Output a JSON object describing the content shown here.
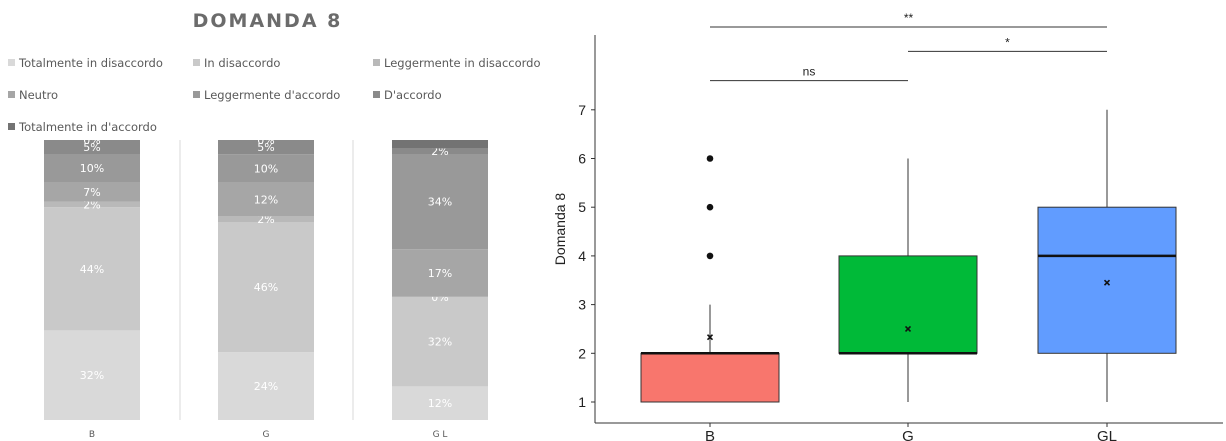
{
  "chart_data": [
    {
      "type": "bar",
      "stacked": true,
      "title": "DOMANDA 8",
      "categories": [
        "B",
        "G",
        "G L"
      ],
      "legend_position": "top",
      "series": [
        {
          "name": "Totalmente in disaccordo",
          "color": "#d9d9d9",
          "values": [
            32,
            24,
            12
          ]
        },
        {
          "name": "In disaccordo",
          "color": "#c9c9c9",
          "values": [
            44,
            46,
            32
          ]
        },
        {
          "name": "Leggermente in disaccordo",
          "color": "#b9b9b9",
          "values": [
            2,
            2,
            0
          ]
        },
        {
          "name": "Neutro",
          "color": "#a6a6a6",
          "values": [
            7,
            12,
            17
          ]
        },
        {
          "name": "Leggermente d'accordo",
          "color": "#999999",
          "values": [
            10,
            10,
            34
          ]
        },
        {
          "name": "D'accordo",
          "color": "#8a8a8a",
          "values": [
            5,
            5,
            2
          ]
        },
        {
          "name": "Totalmente in d'accordo",
          "color": "#737373",
          "values": [
            0,
            0,
            3
          ]
        }
      ],
      "data_labels": [
        [
          "32%",
          "44%",
          "2%",
          "7%",
          "10%",
          "5%",
          "0%"
        ],
        [
          "24%",
          "46%",
          "2%",
          "12%",
          "10%",
          "5%",
          "0%"
        ],
        [
          "12%",
          "32%",
          "0%",
          "17%",
          "34%",
          "2%",
          ""
        ]
      ],
      "ylim": [
        0,
        100
      ]
    },
    {
      "type": "box",
      "ylabel": "Domanda 8",
      "categories": [
        "B",
        "G",
        "GL"
      ],
      "ylim": [
        0.8,
        7.8
      ],
      "yticks": [
        1,
        2,
        3,
        4,
        5,
        6,
        7
      ],
      "boxes": [
        {
          "name": "B",
          "color": "#f8766d",
          "whisker_low": 1,
          "q1": 1,
          "median": 2,
          "q3": 2,
          "whisker_high": 3,
          "mean": 2.33,
          "outliers": [
            4,
            5,
            6
          ]
        },
        {
          "name": "G",
          "color": "#00ba38",
          "whisker_low": 1,
          "q1": 2,
          "median": 2,
          "q3": 4,
          "whisker_high": 6,
          "mean": 2.5,
          "outliers": []
        },
        {
          "name": "GL",
          "color": "#619cff",
          "whisker_low": 1,
          "q1": 2,
          "median": 4,
          "q3": 5,
          "whisker_high": 7,
          "mean": 3.45,
          "outliers": []
        }
      ],
      "significance": [
        {
          "from": "B",
          "to": "G",
          "label": "ns",
          "y": 7.6
        },
        {
          "from": "G",
          "to": "GL",
          "label": "*",
          "y": 8.2
        },
        {
          "from": "B",
          "to": "GL",
          "label": "**",
          "y": 8.7
        }
      ]
    }
  ]
}
